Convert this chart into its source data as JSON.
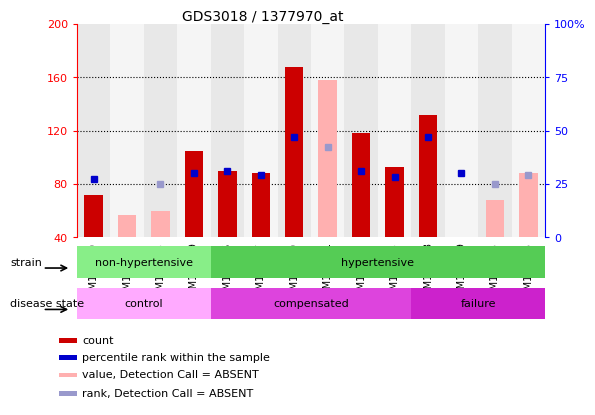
{
  "title": "GDS3018 / 1377970_at",
  "samples": [
    "GSM180079",
    "GSM180082",
    "GSM180085",
    "GSM180089",
    "GSM178755",
    "GSM180057",
    "GSM180059",
    "GSM180061",
    "GSM180062",
    "GSM180065",
    "GSM180068",
    "GSM180069",
    "GSM180073",
    "GSM180075"
  ],
  "count": [
    72,
    null,
    null,
    105,
    90,
    88,
    168,
    null,
    118,
    93,
    132,
    null,
    null,
    null
  ],
  "count_absent": [
    null,
    57,
    60,
    null,
    null,
    null,
    null,
    158,
    null,
    null,
    null,
    null,
    68,
    88
  ],
  "percentile": [
    84,
    null,
    null,
    88,
    90,
    87,
    115,
    null,
    90,
    85,
    115,
    88,
    null,
    null
  ],
  "percentile_absent": [
    null,
    null,
    80,
    null,
    null,
    null,
    null,
    108,
    null,
    null,
    null,
    null,
    80,
    87
  ],
  "ylim_left": [
    40,
    200
  ],
  "ylim_right": [
    0,
    100
  ],
  "yticks_left": [
    40,
    80,
    120,
    160,
    200
  ],
  "yticks_right": [
    0,
    25,
    50,
    75,
    100
  ],
  "bar_color_count": "#cc0000",
  "bar_color_absent": "#ffb0b0",
  "dot_color_present": "#0000cc",
  "dot_color_absent": "#9999cc",
  "strain_nonhyp_color": "#88ee88",
  "strain_hyp_color": "#55cc55",
  "disease_control_color": "#ffaaff",
  "disease_comp_color": "#dd44dd",
  "disease_fail_color": "#cc22cc",
  "bg_color": "#ffffff",
  "col_bg_even": "#e8e8e8",
  "col_bg_odd": "#f5f5f5",
  "legend_items": [
    {
      "label": "count",
      "color": "#cc0000"
    },
    {
      "label": "percentile rank within the sample",
      "color": "#0000cc"
    },
    {
      "label": "value, Detection Call = ABSENT",
      "color": "#ffb0b0"
    },
    {
      "label": "rank, Detection Call = ABSENT",
      "color": "#9999cc"
    }
  ]
}
